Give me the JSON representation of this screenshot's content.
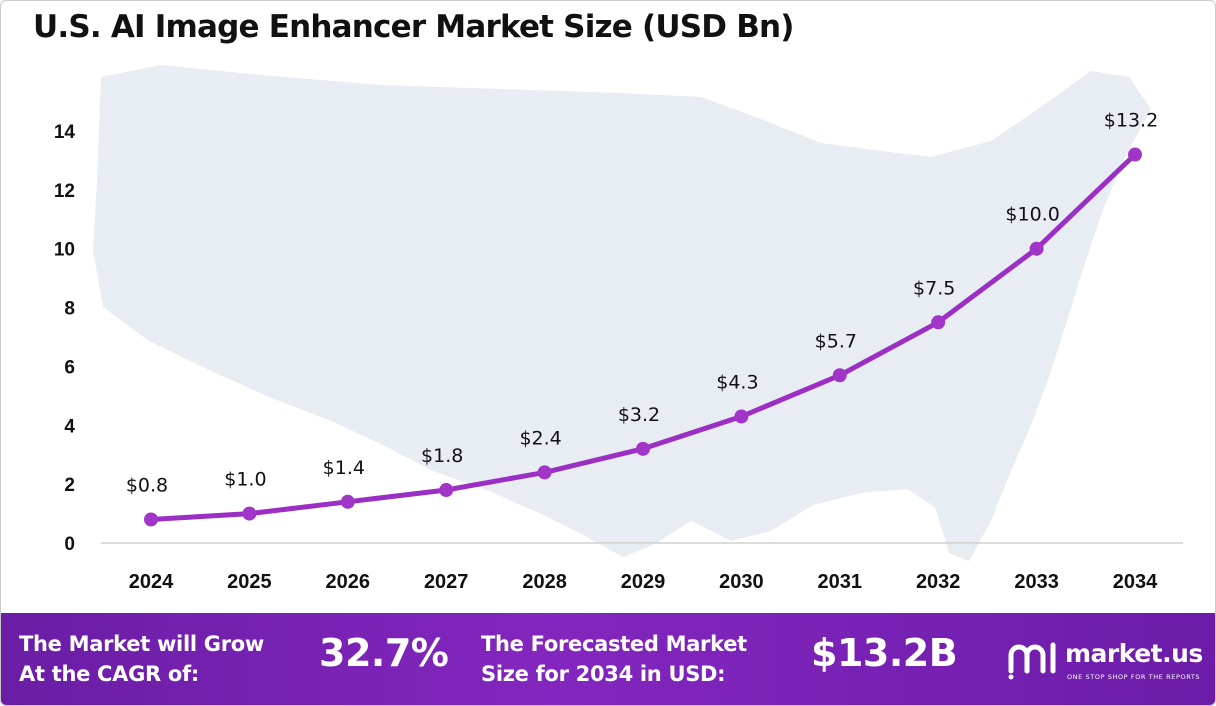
{
  "title": "U.S. AI Image Enhancer Market Size (USD Bn)",
  "colors": {
    "line": "#9b2fc4",
    "marker": "#a035c8",
    "banner": "#7a22b5",
    "map": "#e8ecf3"
  },
  "chart_data": {
    "type": "line",
    "title": "U.S. AI Image Enhancer Market Size (USD Bn)",
    "categories": [
      "2024",
      "2025",
      "2026",
      "2027",
      "2028",
      "2029",
      "2030",
      "2031",
      "2032",
      "2033",
      "2034"
    ],
    "values": [
      0.8,
      1.0,
      1.4,
      1.8,
      2.4,
      3.2,
      4.3,
      5.7,
      7.5,
      10.0,
      13.2
    ],
    "data_labels": [
      "$0.8",
      "$1.0",
      "$1.4",
      "$1.8",
      "$2.4",
      "$3.2",
      "$4.3",
      "$5.7",
      "$7.5",
      "$10.0",
      "$13.2"
    ],
    "yticks": [
      0,
      2,
      4,
      6,
      8,
      10,
      12,
      14
    ],
    "ylim": [
      0,
      14
    ],
    "xlabel": "",
    "ylabel": "",
    "grid": false,
    "legend": "none"
  },
  "banner": {
    "cagr_line1": "The Market will Grow",
    "cagr_line2": "At the CAGR of:",
    "cagr_value": "32.7%",
    "forecast_line1": "The Forecasted Market",
    "forecast_line2": "Size for 2034 in USD:",
    "forecast_value": "$13.2B",
    "logo_name": "market.us",
    "logo_tagline": "ONE STOP SHOP FOR THE REPORTS"
  }
}
